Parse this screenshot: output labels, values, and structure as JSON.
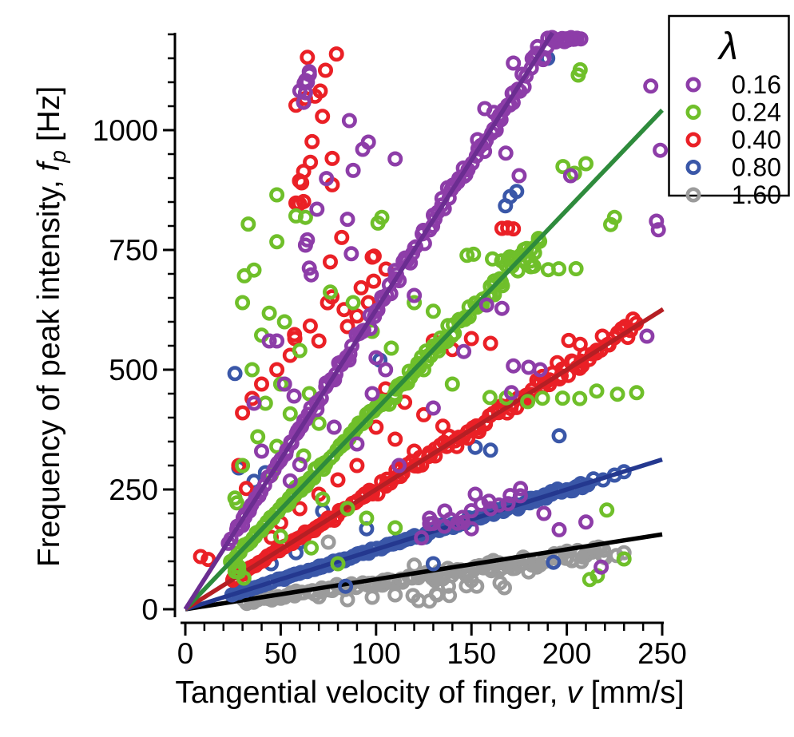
{
  "figure": {
    "background": "#ffffff"
  },
  "chart_data": {
    "type": "scatter",
    "title": "",
    "xlabel": "Tangential velocity of finger, v [mm/s]",
    "xlabel_parts": {
      "prefix": "Tangential velocity of finger, ",
      "symbol": "v",
      "suffix": " [mm/s]"
    },
    "ylabel": "Frequency of peak intensity, f_p [Hz]",
    "ylabel_parts": {
      "prefix": "Frequency of peak intensity, ",
      "symbol": "f",
      "subscript": "p",
      "suffix": " [Hz]"
    },
    "xlim": [
      0,
      250
    ],
    "ylim": [
      0,
      1210
    ],
    "x_major_ticks": [
      0,
      50,
      100,
      150,
      200,
      250
    ],
    "x_minor_step": 10,
    "y_major_ticks": [
      0,
      250,
      500,
      750,
      1000
    ],
    "y_minor_step": 50,
    "y_minor_max": 1200,
    "grid": false,
    "axis_color": "#000000",
    "legend": {
      "title": "λ",
      "position": "top-right"
    },
    "random_seed": 20240917,
    "series": [
      {
        "label": "0.16",
        "lambda": 0.16,
        "marker_color": "#8D3DA8",
        "line_color": "#6B2D91",
        "fit_line": {
          "slope": 6.25,
          "v_end": 192.5
        },
        "trend": {
          "slope": 6.25,
          "v_min": 24,
          "v_max": 205,
          "count": 150,
          "rel_noise": 0.022,
          "f_cap": 1194
        },
        "branches": [
          {
            "v0": 125,
            "v1": 178,
            "f0": 160,
            "f1": 255,
            "n": 16,
            "jv": 3,
            "jf": 14
          },
          {
            "v0": 60,
            "v1": 64,
            "f0": 1085,
            "f1": 1118,
            "n": 4,
            "jv": 2,
            "jf": 6
          },
          {
            "v0": 193,
            "v1": 207,
            "f0": 1182,
            "f1": 1190,
            "n": 5,
            "jv": 2,
            "jf": 4
          }
        ],
        "outliers": [
          [
            64,
            1100
          ],
          [
            63,
            1078
          ],
          [
            65,
            1122
          ],
          [
            62,
            1058
          ],
          [
            172,
            1140
          ],
          [
            244,
            1092
          ],
          [
            157,
            1045
          ],
          [
            163,
            1000
          ],
          [
            168,
            952
          ],
          [
            175,
            905
          ],
          [
            249,
            958
          ],
          [
            247,
            810
          ],
          [
            248,
            792
          ],
          [
            88,
            916
          ],
          [
            74,
            899
          ],
          [
            86,
            1020
          ],
          [
            85,
            814
          ],
          [
            69,
            835
          ],
          [
            63,
            760
          ],
          [
            64,
            771
          ],
          [
            87,
            742
          ],
          [
            65,
            712
          ],
          [
            66,
            698
          ],
          [
            48,
            560
          ],
          [
            52,
            470
          ],
          [
            57,
            445
          ],
          [
            93,
            960
          ],
          [
            96,
            975
          ],
          [
            110,
            940
          ],
          [
            120,
            655
          ],
          [
            100,
            525
          ],
          [
            105,
            500
          ],
          [
            98,
            450
          ],
          [
            78,
            380
          ],
          [
            90,
            345
          ],
          [
            112,
            300
          ],
          [
            130,
            420
          ],
          [
            146,
            538
          ],
          [
            171,
            452
          ],
          [
            172,
            508
          ],
          [
            180,
            505
          ],
          [
            186,
            500
          ],
          [
            152,
            240
          ],
          [
            160,
            210
          ],
          [
            210,
            182
          ],
          [
            218,
            88
          ],
          [
            150,
            168
          ],
          [
            158,
            635
          ],
          [
            166,
            628
          ],
          [
            188,
            200
          ],
          [
            196,
            166
          ],
          [
            242,
            570
          ],
          [
            36,
            430
          ],
          [
            40,
            330
          ],
          [
            34,
            212
          ],
          [
            30,
            175
          ],
          [
            44,
            560
          ],
          [
            128,
            190
          ],
          [
            136,
            205
          ],
          [
            60,
            302
          ],
          [
            55,
            268
          ],
          [
            202,
            905
          ]
        ]
      },
      {
        "label": "0.24",
        "lambda": 0.24,
        "marker_color": "#6FBF2A",
        "line_color": "#2E8B3C",
        "fit_line": {
          "slope": 4.167,
          "v_end": 250
        },
        "trend": {
          "slope": 4.167,
          "v_min": 24,
          "v_max": 186,
          "count": 140,
          "rel_noise": 0.028,
          "f_cap": 1198
        },
        "branches": [
          {
            "v0": 160,
            "v1": 236,
            "f0": 440,
            "f1": 450,
            "n": 9,
            "jv": 2,
            "jf": 6
          },
          {
            "v0": 145,
            "v1": 205,
            "f0": 742,
            "f1": 706,
            "n": 10,
            "jv": 3,
            "jf": 10
          },
          {
            "v0": 23,
            "v1": 30,
            "f0": 95,
            "f1": 70,
            "n": 6,
            "jv": 2,
            "jf": 10
          }
        ],
        "outliers": [
          [
            33,
            804
          ],
          [
            48,
            865
          ],
          [
            58,
            821
          ],
          [
            63,
            818
          ],
          [
            101,
            806
          ],
          [
            103,
            818
          ],
          [
            48,
            767
          ],
          [
            31,
            696
          ],
          [
            36,
            708
          ],
          [
            30,
            640
          ],
          [
            44,
            618
          ],
          [
            52,
            600
          ],
          [
            40,
            572
          ],
          [
            60,
            540
          ],
          [
            35,
            500
          ],
          [
            50,
            470
          ],
          [
            65,
            450
          ],
          [
            42,
            430
          ],
          [
            55,
            408
          ],
          [
            70,
            388
          ],
          [
            38,
            360
          ],
          [
            48,
            340
          ],
          [
            62,
            320
          ],
          [
            30,
            300
          ],
          [
            45,
            280
          ],
          [
            58,
            255
          ],
          [
            72,
            230
          ],
          [
            85,
            210
          ],
          [
            95,
            190
          ],
          [
            110,
            170
          ],
          [
            207,
            1126
          ],
          [
            206,
            1115
          ],
          [
            198,
            924
          ],
          [
            204,
            910
          ],
          [
            210,
            930
          ],
          [
            221,
            207
          ],
          [
            216,
            70
          ],
          [
            212,
            62
          ],
          [
            230,
            105
          ],
          [
            50,
            152
          ],
          [
            66,
            128
          ],
          [
            80,
            95
          ],
          [
            120,
            640
          ],
          [
            130,
            622
          ],
          [
            98,
            580
          ],
          [
            88,
            640
          ],
          [
            76,
            662
          ],
          [
            108,
            545
          ],
          [
            125,
            500
          ],
          [
            140,
            470
          ],
          [
            26,
            232
          ],
          [
            27,
            222
          ],
          [
            223,
            803
          ],
          [
            225,
            818
          ]
        ]
      },
      {
        "label": "0.40",
        "lambda": 0.4,
        "marker_color": "#EA2026",
        "line_color": "#B51F24",
        "fit_line": {
          "slope": 2.5,
          "v_end": 250.5
        },
        "trend": {
          "slope": 2.5,
          "v_min": 24,
          "v_max": 236,
          "count": 150,
          "rel_noise": 0.035,
          "f_cap": 1198
        },
        "branches": [
          {
            "v0": 60,
            "v1": 78,
            "f0": 850,
            "f1": 1160,
            "n": 8,
            "jv": 3,
            "jf": 18
          },
          {
            "v0": 55,
            "v1": 105,
            "f0": 560,
            "f1": 700,
            "n": 9,
            "jv": 4,
            "jf": 28
          }
        ],
        "outliers": [
          [
            64,
            1152
          ],
          [
            68,
            1071
          ],
          [
            58,
            1052
          ],
          [
            63,
            1066
          ],
          [
            77,
            941
          ],
          [
            77,
            886
          ],
          [
            61,
            890
          ],
          [
            62,
            914
          ],
          [
            58,
            848
          ],
          [
            62,
            851
          ],
          [
            82,
            776
          ],
          [
            99,
            737
          ],
          [
            76,
            725
          ],
          [
            98,
            735
          ],
          [
            166,
            795
          ],
          [
            169,
            796
          ],
          [
            172,
            794
          ],
          [
            96,
            640
          ],
          [
            90,
            612
          ],
          [
            85,
            590
          ],
          [
            70,
            560
          ],
          [
            55,
            530
          ],
          [
            48,
            500
          ],
          [
            40,
            470
          ],
          [
            35,
            440
          ],
          [
            30,
            410
          ],
          [
            100,
            380
          ],
          [
            110,
            355
          ],
          [
            120,
            330
          ],
          [
            130,
            560
          ],
          [
            140,
            542
          ],
          [
            90,
            300
          ],
          [
            80,
            270
          ],
          [
            70,
            240
          ],
          [
            60,
            210
          ],
          [
            50,
            180
          ],
          [
            150,
            565
          ],
          [
            160,
            555
          ],
          [
            8,
            110
          ],
          [
            12,
            104
          ],
          [
            45,
            150
          ],
          [
            105,
            460
          ],
          [
            115,
            432
          ],
          [
            125,
            406
          ],
          [
            135,
            382
          ],
          [
            201,
            561
          ],
          [
            207,
            553
          ],
          [
            32,
            252
          ],
          [
            28,
            300
          ]
        ]
      },
      {
        "label": "0.80",
        "lambda": 0.8,
        "marker_color": "#3A57A8",
        "line_color": "#24388F",
        "fit_line": {
          "slope": 1.25,
          "v_end": 250
        },
        "trend": {
          "slope": 1.25,
          "v_min": 24,
          "v_max": 211,
          "count": 140,
          "rel_noise": 0.03,
          "f_cap": 1198
        },
        "branches": [
          {
            "v0": 168,
            "v1": 174,
            "f0": 845,
            "f1": 870,
            "n": 3,
            "jv": 2,
            "jf": 4
          }
        ],
        "outliers": [
          [
            190,
            1150
          ],
          [
            102,
            520
          ],
          [
            196,
            362
          ],
          [
            36,
            267
          ],
          [
            26,
            492
          ],
          [
            95,
            168
          ],
          [
            60,
            140
          ],
          [
            45,
            95
          ],
          [
            130,
            95
          ],
          [
            193,
            98
          ],
          [
            160,
            332
          ],
          [
            72,
            205
          ],
          [
            84,
            48
          ],
          [
            214,
            272
          ],
          [
            219,
            270
          ],
          [
            225,
            280
          ],
          [
            230,
            287
          ],
          [
            205,
            256
          ],
          [
            152,
            338
          ],
          [
            58,
            118
          ],
          [
            28,
            295
          ],
          [
            42,
            285
          ]
        ]
      },
      {
        "label": "1.60",
        "lambda": 1.6,
        "marker_color": "#9B9B9B",
        "line_color": "#000000",
        "fit_line": {
          "slope": 0.625,
          "v_end": 250
        },
        "trend": {
          "slope": 0.55,
          "v_min": 30,
          "v_max": 220,
          "count": 140,
          "rel_noise": 0.1,
          "abs_noise": 5,
          "f_cap": 1198
        },
        "branches": [
          {
            "v0": 118,
            "v1": 162,
            "f0": 18,
            "f1": 46,
            "n": 7,
            "jv": 4,
            "jf": 7
          }
        ],
        "outliers": [
          [
            128,
            17
          ],
          [
            132,
            30
          ],
          [
            138,
            48
          ],
          [
            60,
            150
          ],
          [
            75,
            140
          ],
          [
            200,
            108
          ],
          [
            210,
            112
          ],
          [
            219,
            110
          ],
          [
            150,
            60
          ],
          [
            165,
            55
          ],
          [
            58,
            38
          ],
          [
            70,
            26
          ],
          [
            85,
            20
          ],
          [
            180,
            78
          ],
          [
            230,
            118
          ],
          [
            226,
            112
          ],
          [
            45,
            55
          ],
          [
            40,
            26
          ],
          [
            32,
            14
          ],
          [
            38,
            20
          ],
          [
            120,
            92
          ],
          [
            98,
            25
          ],
          [
            110,
            30
          ]
        ]
      }
    ]
  }
}
